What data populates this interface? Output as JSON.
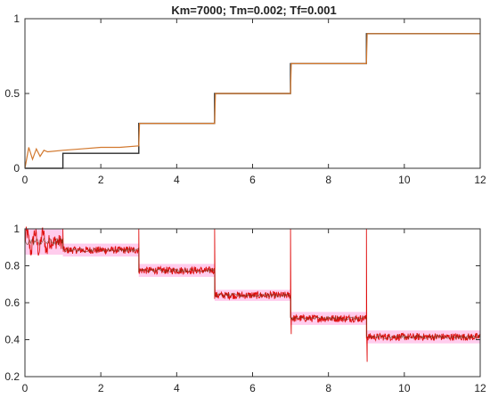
{
  "title": "Km=7000; Tm=0.002; Tf=0.001",
  "colors": {
    "reference": "#2b2b2b",
    "response_top": "#d2782e",
    "response_bottom": "#e01010",
    "band": "#ff8fd8"
  },
  "chart_data": [
    {
      "type": "line",
      "xlim": [
        0,
        12
      ],
      "ylim": [
        0,
        1
      ],
      "xticks": [
        "0",
        "2",
        "4",
        "6",
        "8",
        "10",
        "12"
      ],
      "yticks": [
        "0",
        "0.5",
        "1"
      ],
      "series": [
        {
          "role": "reference",
          "x": [
            0,
            1,
            1,
            3,
            3,
            5,
            5,
            7,
            7,
            9,
            9,
            12
          ],
          "y": [
            0,
            0,
            0.1,
            0.1,
            0.3,
            0.3,
            0.5,
            0.5,
            0.7,
            0.7,
            0.9,
            0.9
          ]
        },
        {
          "role": "response",
          "x": [
            0,
            0.1,
            0.2,
            0.3,
            0.4,
            0.5,
            0.6,
            1,
            1.5,
            2,
            2.5,
            3,
            3.02,
            3.5,
            5,
            5.02,
            6,
            7,
            7.02,
            8,
            9,
            9.02,
            10,
            12
          ],
          "y": [
            0,
            0.14,
            0.06,
            0.13,
            0.08,
            0.12,
            0.11,
            0.12,
            0.13,
            0.14,
            0.14,
            0.15,
            0.3,
            0.3,
            0.3,
            0.5,
            0.5,
            0.5,
            0.7,
            0.7,
            0.7,
            0.9,
            0.9,
            0.9
          ]
        }
      ]
    },
    {
      "type": "line",
      "xlim": [
        0,
        12
      ],
      "ylim": [
        0.2,
        1
      ],
      "xticks": [
        "0",
        "2",
        "4",
        "6",
        "8",
        "10",
        "12"
      ],
      "yticks": [
        "0.2",
        "0.4",
        "0.6",
        "0.8",
        "1"
      ],
      "bands": [
        {
          "x": [
            0,
            1
          ],
          "y": [
            0.86,
            1.0
          ]
        },
        {
          "x": [
            1,
            3
          ],
          "y": [
            0.85,
            0.92
          ]
        },
        {
          "x": [
            3,
            5
          ],
          "y": [
            0.74,
            0.81
          ]
        },
        {
          "x": [
            5,
            7
          ],
          "y": [
            0.61,
            0.67
          ]
        },
        {
          "x": [
            7,
            9
          ],
          "y": [
            0.48,
            0.55
          ]
        },
        {
          "x": [
            9,
            12
          ],
          "y": [
            0.38,
            0.45
          ]
        }
      ],
      "series": [
        {
          "role": "response",
          "segments": [
            {
              "x": [
                0,
                1
              ],
              "mean": 0.93,
              "noise": 0.04
            },
            {
              "x": [
                1,
                3
              ],
              "mean": 0.885,
              "noise": 0.02
            },
            {
              "x": [
                3,
                5
              ],
              "mean": 0.775,
              "noise": 0.02
            },
            {
              "x": [
                5,
                7
              ],
              "mean": 0.64,
              "noise": 0.02
            },
            {
              "x": [
                7,
                9
              ],
              "mean": 0.515,
              "noise": 0.02
            },
            {
              "x": [
                9,
                12
              ],
              "mean": 0.415,
              "noise": 0.02
            }
          ],
          "spikes": [
            {
              "x": 1,
              "y": 1.0
            },
            {
              "x": 3,
              "y": 1.0
            },
            {
              "x": 5,
              "y": 1.0
            },
            {
              "x": 7,
              "y": 1.0
            },
            {
              "x": 7.02,
              "y": 0.43
            },
            {
              "x": 9,
              "y": 1.0
            },
            {
              "x": 9.02,
              "y": 0.28
            }
          ]
        }
      ]
    }
  ]
}
